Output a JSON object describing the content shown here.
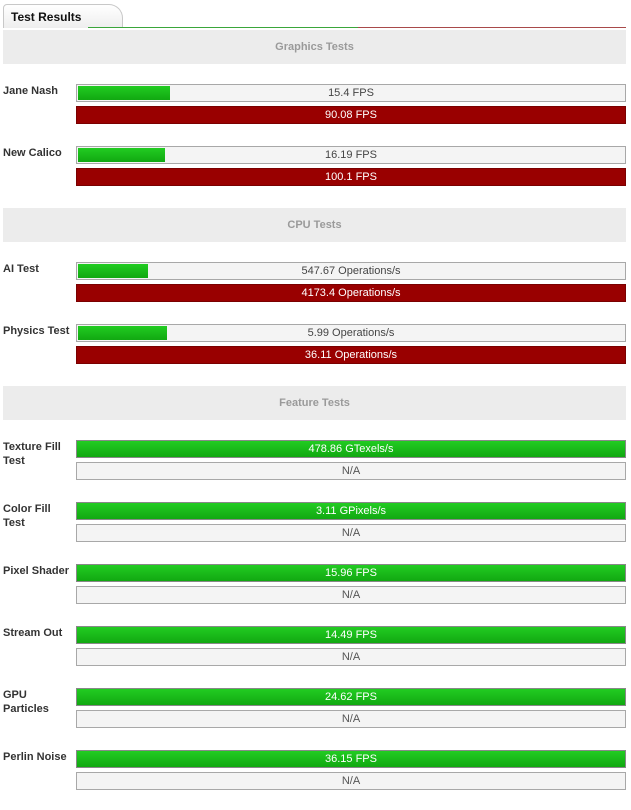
{
  "tab": {
    "label": "Test Results"
  },
  "colors": {
    "bar_green": "#11a811",
    "bar_reference": "#990000",
    "section_bg": "#ececec",
    "section_text": "#9a9a9a"
  },
  "sections": [
    {
      "title": "Graphics Tests",
      "rows": [
        {
          "label": "Jane Nash",
          "result": "15.4 FPS",
          "result_fraction": 0.171,
          "reference": "90.08 FPS"
        },
        {
          "label": "New Calico",
          "result": "16.19 FPS",
          "result_fraction": 0.162,
          "reference": "100.1 FPS"
        }
      ]
    },
    {
      "title": "CPU Tests",
      "rows": [
        {
          "label": "AI Test",
          "result": "547.67 Operations/s",
          "result_fraction": 0.131,
          "reference": "4173.4 Operations/s"
        },
        {
          "label": "Physics Test",
          "result": "5.99 Operations/s",
          "result_fraction": 0.166,
          "reference": "36.11 Operations/s"
        }
      ]
    },
    {
      "title": "Feature Tests",
      "rows": [
        {
          "label": "Texture Fill Test",
          "result": "478.86 GTexels/s",
          "result_fraction": 1,
          "reference": "N/A"
        },
        {
          "label": "Color Fill Test",
          "result": "3.11 GPixels/s",
          "result_fraction": 1,
          "reference": "N/A"
        },
        {
          "label": "Pixel Shader",
          "result": "15.96 FPS",
          "result_fraction": 1,
          "reference": "N/A"
        },
        {
          "label": "Stream Out",
          "result": "14.49 FPS",
          "result_fraction": 1,
          "reference": "N/A"
        },
        {
          "label": "GPU Particles",
          "result": "24.62 FPS",
          "result_fraction": 1,
          "reference": "N/A"
        },
        {
          "label": "Perlin Noise",
          "result": "36.15 FPS",
          "result_fraction": 1,
          "reference": "N/A"
        }
      ]
    }
  ]
}
